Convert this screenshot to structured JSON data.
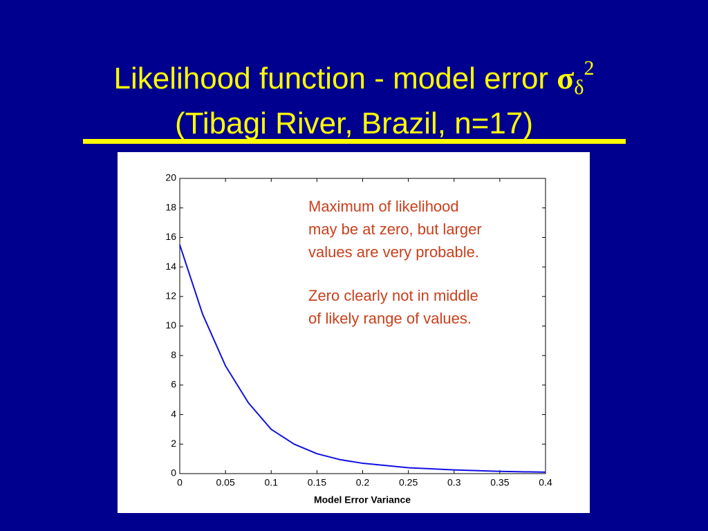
{
  "chart_data": {
    "type": "line",
    "title": [
      "Likelihood function - model error ",
      "σ",
      "δ",
      "2"
    ],
    "subtitle": "(Tibagi River, Brazil, n=17)",
    "xlabel": "Model Error Variance",
    "annotations": [
      [
        "Maximum of likelihood",
        "may be at zero, but larger",
        "values are very probable."
      ],
      [
        "Zero clearly not in middle",
        "of likely range of values."
      ]
    ],
    "x": [
      0,
      0.025,
      0.05,
      0.075,
      0.1,
      0.125,
      0.15,
      0.175,
      0.2,
      0.25,
      0.3,
      0.35,
      0.4
    ],
    "values": [
      15.5,
      10.8,
      7.3,
      4.8,
      3.0,
      2.0,
      1.35,
      0.95,
      0.7,
      0.4,
      0.25,
      0.15,
      0.1
    ],
    "color": "#1010e0",
    "xlim": [
      0,
      0.4
    ],
    "xticks": [
      0,
      0.05,
      0.1,
      0.15,
      0.2,
      0.25,
      0.3,
      0.35,
      0.4
    ],
    "ylim": [
      0,
      20
    ],
    "yticks": [
      0,
      2,
      4,
      6,
      8,
      10,
      12,
      14,
      16,
      18,
      20
    ]
  }
}
